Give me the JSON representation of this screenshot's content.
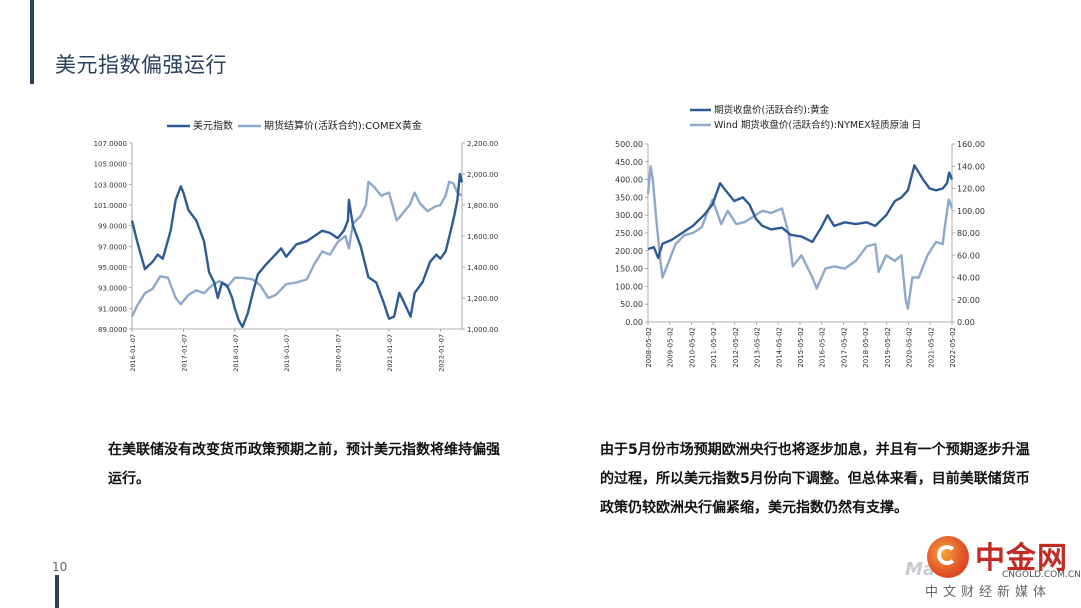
{
  "slide": {
    "title": "美元指数偏强运行",
    "page_number": "10",
    "left_text": "在美联储没有改变货币政策预期之前，预计美元指数将维持偏强运行。",
    "right_text": "由于5月份市场预期欧洲央行也将逐步加息，并且有一个预期逐步升温的过程，所以美元指数5月份向下调整。但总体来看，目前美联储货币政策仍较欧洲央行偏紧缩，美元指数仍然有支撑。"
  },
  "logo": {
    "name_cn": "中金网",
    "domain": "CNGOLD.COM.CN",
    "tagline": "中文财经新媒体",
    "watermark": "MaVe"
  },
  "colors": {
    "dark_series": "#2f5b94",
    "light_series": "#8fa8cc",
    "title": "#2b3f5c",
    "logo_red": "#c22b24"
  },
  "chart_data": [
    {
      "type": "line",
      "title": "",
      "legend": [
        "美元指数",
        "期货结算价(活跃合约):COMEX黄金"
      ],
      "legend_position": "top",
      "grid": false,
      "x_tick_labels": [
        "2016-01-07",
        "2017-01-07",
        "2018-01-07",
        "2019-01-07",
        "2020-01-07",
        "2021-01-07",
        "2022-01-07"
      ],
      "x_range": [
        2016.0,
        2022.42
      ],
      "left_axis": {
        "ticks": [
          "89.0000",
          "91.0000",
          "93.0000",
          "95.0000",
          "97.0000",
          "99.0000",
          "101.0000",
          "103.0000",
          "105.0000",
          "107.0000"
        ],
        "ylim": [
          89,
          107
        ]
      },
      "right_axis": {
        "ticks": [
          "1,000.00",
          "1,200.00",
          "1,400.00",
          "1,600.00",
          "1,800.00",
          "2,000.00",
          "2,200.00"
        ],
        "ylim": [
          1000,
          2200
        ]
      },
      "series": [
        {
          "name": "美元指数",
          "axis": "left",
          "x": [
            2016.0,
            2016.1,
            2016.25,
            2016.4,
            2016.5,
            2016.6,
            2016.75,
            2016.85,
            2016.95,
            2017.0,
            2017.1,
            2017.25,
            2017.4,
            2017.5,
            2017.6,
            2017.67,
            2017.75,
            2017.85,
            2017.95,
            2018.0,
            2018.08,
            2018.15,
            2018.25,
            2018.35,
            2018.45,
            2018.6,
            2018.75,
            2018.9,
            2019.0,
            2019.2,
            2019.4,
            2019.55,
            2019.7,
            2019.85,
            2020.0,
            2020.12,
            2020.2,
            2020.22,
            2020.3,
            2020.45,
            2020.6,
            2020.75,
            2020.9,
            2021.0,
            2021.1,
            2021.2,
            2021.3,
            2021.42,
            2021.5,
            2021.65,
            2021.8,
            2021.92,
            2022.0,
            2022.1,
            2022.2,
            2022.27,
            2022.33,
            2022.38,
            2022.42
          ],
          "y": [
            99.5,
            97.5,
            94.8,
            95.5,
            96.2,
            95.8,
            98.5,
            101.5,
            102.8,
            102.2,
            100.5,
            99.5,
            97.5,
            94.5,
            93.5,
            92.0,
            93.5,
            93.2,
            92.0,
            91.0,
            89.8,
            89.2,
            90.5,
            92.5,
            94.3,
            95.2,
            96.0,
            96.8,
            96.0,
            97.2,
            97.5,
            98.0,
            98.5,
            98.3,
            97.8,
            98.5,
            99.5,
            101.5,
            99.0,
            97.0,
            94.0,
            93.5,
            91.5,
            90.0,
            90.2,
            92.5,
            91.5,
            90.2,
            92.5,
            93.5,
            95.5,
            96.2,
            95.8,
            96.5,
            98.5,
            100.0,
            101.5,
            104.0,
            103.2
          ]
        },
        {
          "name": "期货结算价(活跃合约):COMEX黄金",
          "axis": "right",
          "x": [
            2016.0,
            2016.1,
            2016.25,
            2016.4,
            2016.55,
            2016.7,
            2016.85,
            2016.95,
            2017.1,
            2017.25,
            2017.4,
            2017.55,
            2017.7,
            2017.85,
            2018.0,
            2018.15,
            2018.35,
            2018.5,
            2018.65,
            2018.8,
            2019.0,
            2019.2,
            2019.4,
            2019.55,
            2019.7,
            2019.85,
            2020.0,
            2020.15,
            2020.22,
            2020.3,
            2020.45,
            2020.55,
            2020.6,
            2020.7,
            2020.85,
            2021.0,
            2021.15,
            2021.25,
            2021.4,
            2021.5,
            2021.6,
            2021.75,
            2021.9,
            2022.0,
            2022.1,
            2022.17,
            2022.25,
            2022.33,
            2022.42
          ],
          "y": [
            1080,
            1150,
            1230,
            1260,
            1340,
            1330,
            1200,
            1160,
            1220,
            1250,
            1230,
            1280,
            1310,
            1270,
            1330,
            1330,
            1320,
            1280,
            1200,
            1220,
            1290,
            1300,
            1320,
            1420,
            1500,
            1480,
            1560,
            1600,
            1520,
            1680,
            1730,
            1800,
            1950,
            1920,
            1860,
            1880,
            1700,
            1740,
            1800,
            1880,
            1810,
            1760,
            1790,
            1800,
            1860,
            1950,
            1940,
            1880,
            1860
          ]
        }
      ]
    },
    {
      "type": "line",
      "title": "",
      "legend": [
        "期货收盘价(活跃合约):黄金",
        "Wind 期货收盘价(活跃合约):NYMEX轻质原油 日"
      ],
      "legend_position": "top",
      "grid": false,
      "x_tick_labels": [
        "2008-05-02",
        "2009-05-02",
        "2010-05-02",
        "2011-05-02",
        "2012-05-02",
        "2013-05-02",
        "2014-05-02",
        "2015-05-02",
        "2016-05-02",
        "2017-05-02",
        "2018-05-02",
        "2019-05-02",
        "2020-05-02",
        "2021-05-02",
        "2022-05-02"
      ],
      "x_range": [
        2008.33,
        2022.33
      ],
      "left_axis": {
        "ticks": [
          "0.00",
          "50.00",
          "100.00",
          "150.00",
          "200.00",
          "250.00",
          "300.00",
          "350.00",
          "400.00",
          "450.00",
          "500.00"
        ],
        "ylim": [
          0,
          500
        ]
      },
      "right_axis": {
        "ticks": [
          "0.00",
          "20.00",
          "40.00",
          "60.00",
          "80.00",
          "100.00",
          "120.00",
          "140.00",
          "160.00"
        ],
        "ylim": [
          0,
          160
        ]
      },
      "series": [
        {
          "name": "期货收盘价(活跃合约):黄金",
          "axis": "left",
          "x": [
            2008.33,
            2008.6,
            2008.8,
            2009.0,
            2009.4,
            2009.9,
            2010.4,
            2010.9,
            2011.3,
            2011.65,
            2011.9,
            2012.3,
            2012.7,
            2013.0,
            2013.3,
            2013.6,
            2014.0,
            2014.5,
            2014.9,
            2015.4,
            2015.9,
            2016.3,
            2016.6,
            2016.9,
            2017.4,
            2017.9,
            2018.4,
            2018.8,
            2019.3,
            2019.7,
            2020.0,
            2020.3,
            2020.6,
            2020.8,
            2021.0,
            2021.3,
            2021.6,
            2021.9,
            2022.1,
            2022.2,
            2022.33
          ],
          "y": [
            205,
            210,
            180,
            220,
            230,
            250,
            270,
            300,
            330,
            390,
            370,
            340,
            350,
            330,
            290,
            270,
            260,
            265,
            245,
            240,
            225,
            265,
            300,
            270,
            280,
            275,
            280,
            270,
            300,
            340,
            350,
            370,
            440,
            420,
            400,
            375,
            370,
            375,
            390,
            420,
            400
          ]
        },
        {
          "name": "Wind 期货收盘价(活跃合约):NYMEX轻质原油 日",
          "axis": "right",
          "x": [
            2008.33,
            2008.45,
            2008.55,
            2008.7,
            2008.9,
            2009.0,
            2009.3,
            2009.6,
            2010.0,
            2010.4,
            2010.8,
            2011.3,
            2011.7,
            2012.0,
            2012.4,
            2012.8,
            2013.2,
            2013.6,
            2014.0,
            2014.5,
            2014.8,
            2015.0,
            2015.4,
            2015.9,
            2016.1,
            2016.5,
            2016.9,
            2017.4,
            2017.9,
            2018.4,
            2018.8,
            2018.95,
            2019.3,
            2019.7,
            2020.0,
            2020.2,
            2020.3,
            2020.5,
            2020.8,
            2021.2,
            2021.6,
            2021.9,
            2022.0,
            2022.18,
            2022.33
          ],
          "y": [
            115,
            140,
            128,
            95,
            55,
            40,
            55,
            70,
            78,
            80,
            85,
            110,
            88,
            100,
            88,
            90,
            95,
            100,
            98,
            102,
            80,
            50,
            60,
            40,
            30,
            48,
            50,
            48,
            55,
            68,
            70,
            45,
            60,
            55,
            60,
            20,
            12,
            40,
            40,
            60,
            72,
            70,
            85,
            110,
            102
          ]
        }
      ]
    }
  ]
}
